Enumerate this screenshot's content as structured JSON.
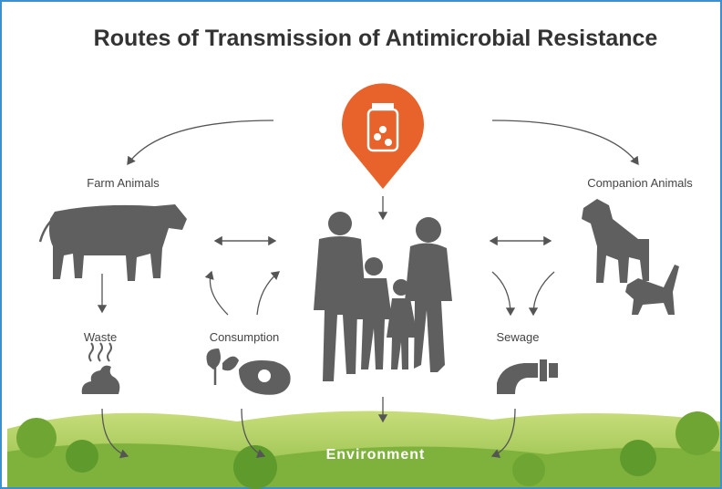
{
  "title": "Routes of Transmission of Antimicrobial Resistance",
  "nodes": [
    {
      "label": "Farm Animals"
    },
    {
      "label": "Companion Animals"
    },
    {
      "label": "Waste"
    },
    {
      "label": "Consumption"
    },
    {
      "label": "Sewage"
    },
    {
      "label": "Environment"
    }
  ]
}
